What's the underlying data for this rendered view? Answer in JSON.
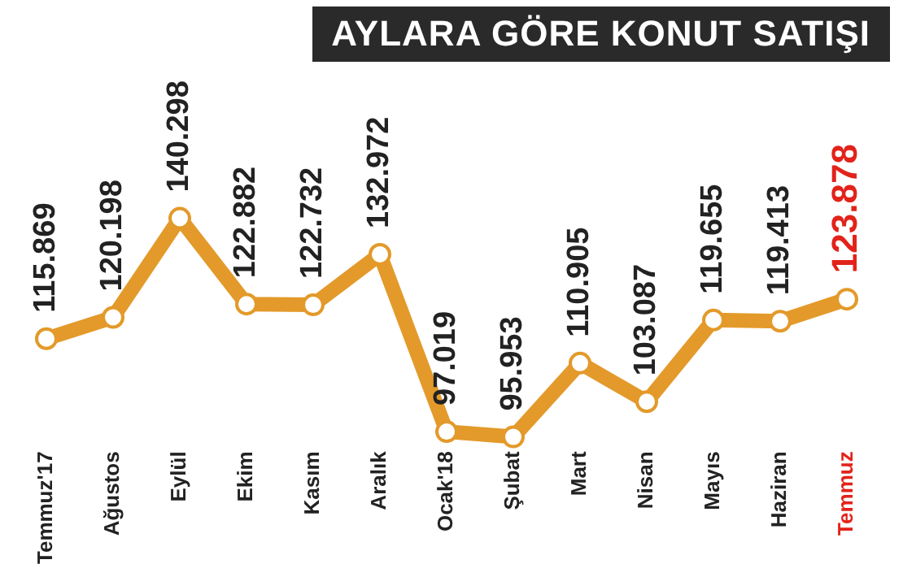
{
  "chart_data": {
    "type": "line",
    "title": "AYLARA GÖRE KONUT SATIŞI",
    "categories": [
      "Temmuz'17",
      "Ağustos",
      "Eylül",
      "Ekim",
      "Kasım",
      "Aralık",
      "Ocak'18",
      "Şubat",
      "Mart",
      "Nisan",
      "Mayıs",
      "Haziran",
      "Temmuz"
    ],
    "series": [
      {
        "color": "#e39a2a",
        "values": [
          115869,
          120198,
          140298,
          122882,
          122732,
          132972,
          97019,
          95953,
          110905,
          103087,
          119655,
          119413,
          123878
        ],
        "value_labels": [
          "115.869",
          "120.198",
          "140.298",
          "122.882",
          "122.732",
          "132.972",
          "97.019",
          "95.953",
          "110.905",
          "103.087",
          "119.655",
          "119.413",
          "123.878"
        ]
      }
    ],
    "marker": "circle",
    "grid": false,
    "legend": false,
    "tick_labels": "x"
  }
}
